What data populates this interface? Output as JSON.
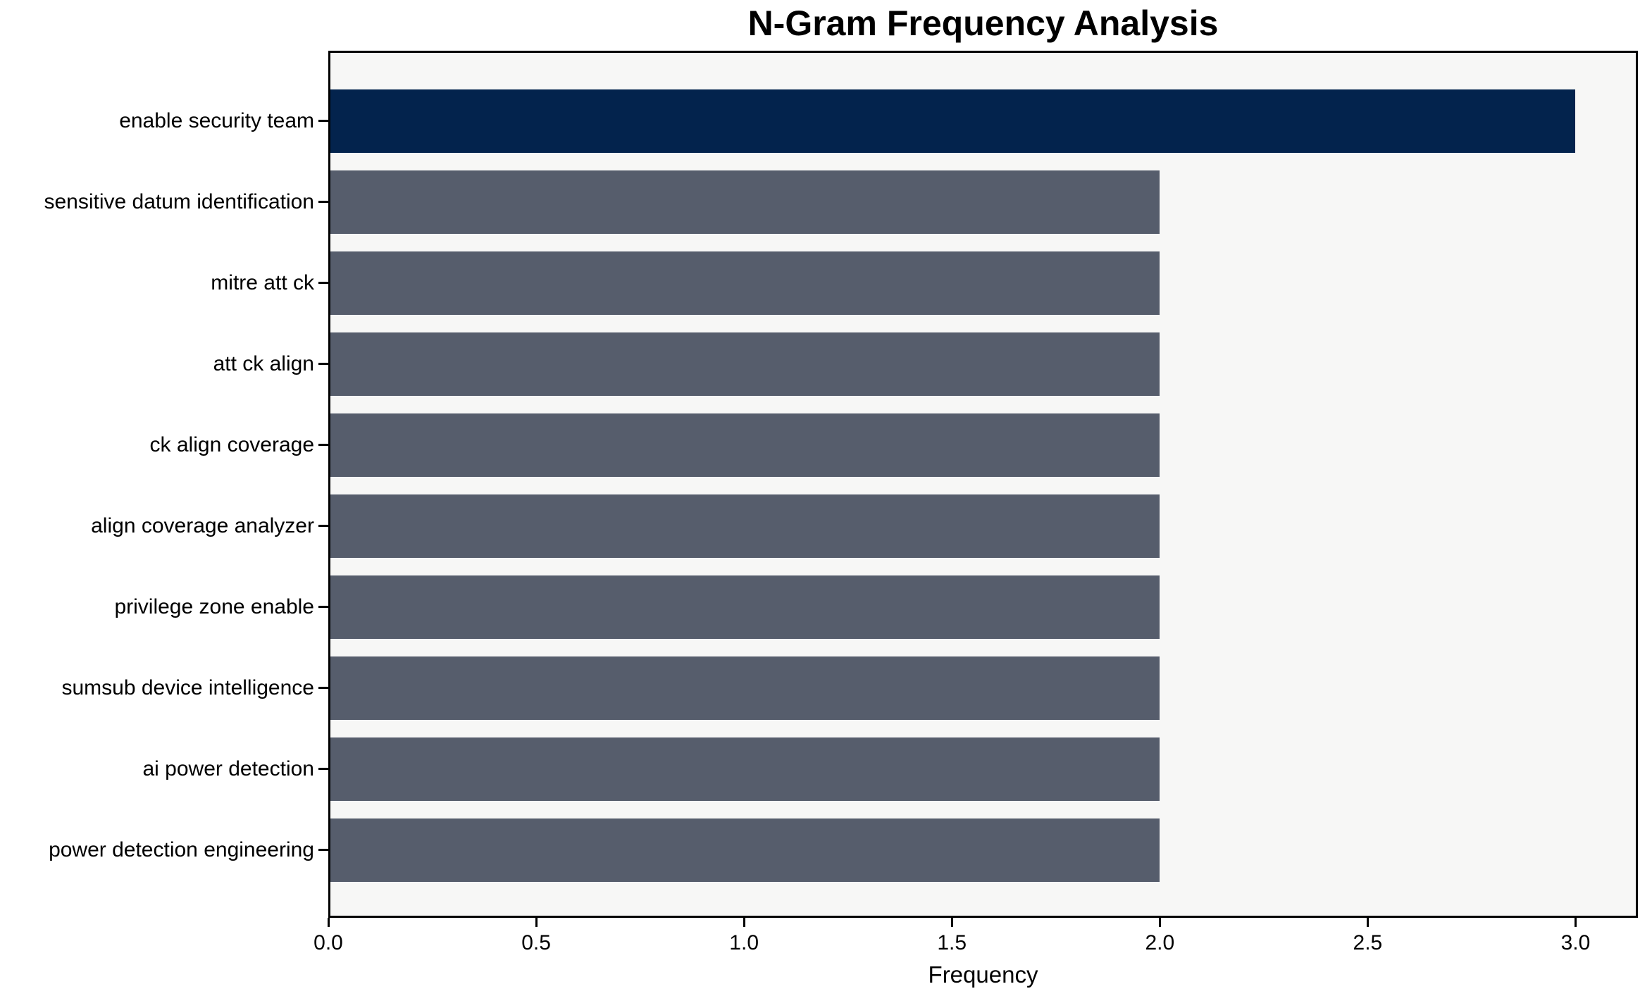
{
  "chart_data": {
    "type": "bar",
    "orientation": "horizontal",
    "title": "N-Gram Frequency Analysis",
    "xlabel": "Frequency",
    "ylabel": "",
    "categories": [
      "enable security team",
      "sensitive datum identification",
      "mitre att ck",
      "att ck align",
      "ck align coverage",
      "align coverage analyzer",
      "privilege zone enable",
      "sumsub device intelligence",
      "ai power detection",
      "power detection engineering"
    ],
    "values": [
      3,
      2,
      2,
      2,
      2,
      2,
      2,
      2,
      2,
      2
    ],
    "xlim": [
      0,
      3.15
    ],
    "xticks": [
      0.0,
      0.5,
      1.0,
      1.5,
      2.0,
      2.5,
      3.0
    ],
    "xtick_labels": [
      "0.0",
      "0.5",
      "1.0",
      "1.5",
      "2.0",
      "2.5",
      "3.0"
    ],
    "grid": false,
    "legend_position": "none",
    "colors": {
      "highlight_bar": "#03234d",
      "default_bar": "#565d6c",
      "bar_colors": [
        "#03234d",
        "#565d6c",
        "#565d6c",
        "#565d6c",
        "#565d6c",
        "#565d6c",
        "#565d6c",
        "#565d6c",
        "#565d6c",
        "#565d6c"
      ],
      "plot_background": "#f7f7f6",
      "figure_background": "#ffffff",
      "spine": "#000000",
      "text": "#000000"
    }
  }
}
